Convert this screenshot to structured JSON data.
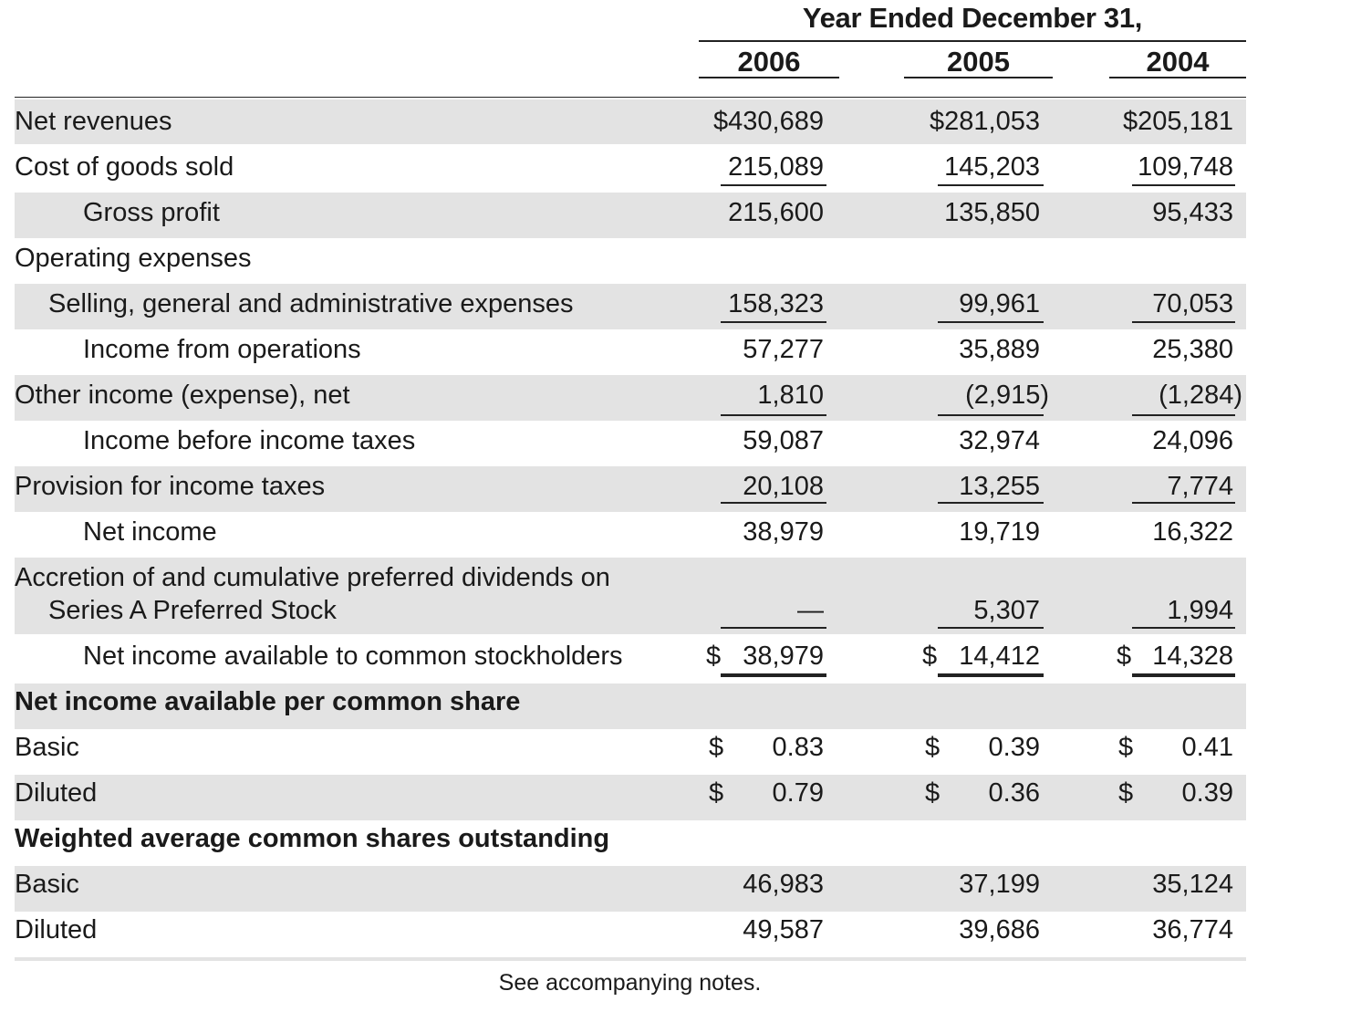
{
  "header": {
    "period_title": "Year Ended December 31,",
    "years": [
      "2006",
      "2005",
      "2004"
    ]
  },
  "rows": [
    {
      "label": "Net revenues",
      "values": [
        "$430,689",
        "$281,053",
        "$205,181"
      ],
      "shaded": true
    },
    {
      "label": "Cost of goods sold",
      "values": [
        "215,089",
        "145,203",
        "109,748"
      ],
      "shaded": false
    },
    {
      "label": "Gross profit",
      "values": [
        "215,600",
        "135,850",
        "95,433"
      ],
      "shaded": true
    },
    {
      "label": "Operating expenses",
      "values": [
        "",
        "",
        ""
      ],
      "shaded": false
    },
    {
      "label": "Selling, general and administrative expenses",
      "values": [
        "158,323",
        "99,961",
        "70,053"
      ],
      "shaded": true
    },
    {
      "label": "Income from operations",
      "values": [
        "57,277",
        "35,889",
        "25,380"
      ],
      "shaded": false
    },
    {
      "label": "Other income (expense), net",
      "values": [
        "1,810",
        "(2,915)",
        "(1,284)"
      ],
      "shaded": true
    },
    {
      "label": "Income before income taxes",
      "values": [
        "59,087",
        "32,974",
        "24,096"
      ],
      "shaded": false
    },
    {
      "label": "Provision for income taxes",
      "values": [
        "20,108",
        "13,255",
        "7,774"
      ],
      "shaded": true
    },
    {
      "label": "Net income",
      "values": [
        "38,979",
        "19,719",
        "16,322"
      ],
      "shaded": false
    },
    {
      "label": "Accretion of and cumulative preferred dividends on",
      "label2": "Series A Preferred Stock",
      "values": [
        "—",
        "5,307",
        "1,994"
      ],
      "shaded": true
    },
    {
      "label": "Net income available to common stockholders",
      "currency": "$",
      "values": [
        "38,979",
        "14,412",
        "14,328"
      ],
      "shaded": false
    },
    {
      "label": "Net income available per common share",
      "values": [
        "",
        "",
        ""
      ],
      "shaded": true,
      "bold": true
    },
    {
      "label": "Basic",
      "currency": "$",
      "values": [
        "0.83",
        "0.39",
        "0.41"
      ],
      "shaded": false
    },
    {
      "label": "Diluted",
      "currency": "$",
      "values": [
        "0.79",
        "0.36",
        "0.39"
      ],
      "shaded": true
    },
    {
      "label": "Weighted average common shares outstanding",
      "values": [
        "",
        "",
        ""
      ],
      "shaded": false,
      "bold": true
    },
    {
      "label": "Basic",
      "values": [
        "46,983",
        "37,199",
        "35,124"
      ],
      "shaded": true
    },
    {
      "label": "Diluted",
      "values": [
        "49,587",
        "39,686",
        "36,774"
      ],
      "shaded": false
    }
  ],
  "footer": {
    "note": "See accompanying notes."
  }
}
